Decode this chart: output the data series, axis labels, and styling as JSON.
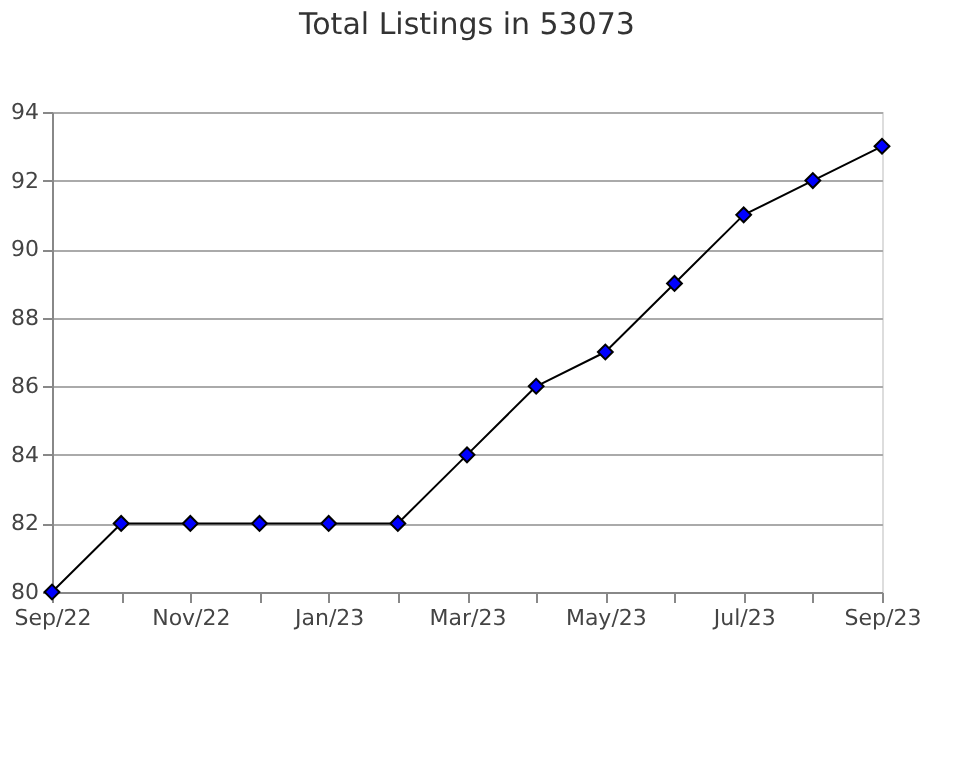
{
  "chart_data": {
    "type": "line",
    "title": "Total Listings in 53073",
    "categories": [
      "Sep/22",
      null,
      "Nov/22",
      null,
      "Jan/23",
      null,
      "Mar/23",
      null,
      "May/23",
      null,
      "Jul/23",
      null,
      "Sep/23"
    ],
    "series": [
      {
        "color": "#0000ff",
        "values": [
          80,
          82,
          82,
          82,
          82,
          82,
          84,
          86,
          87,
          89,
          91,
          92,
          93
        ]
      }
    ],
    "ylim": [
      80,
      94
    ],
    "yticks": [
      80,
      82,
      84,
      86,
      88,
      90,
      92,
      94
    ],
    "grid": "y",
    "marker": "diamond",
    "line_style": "solid",
    "legend": false
  }
}
